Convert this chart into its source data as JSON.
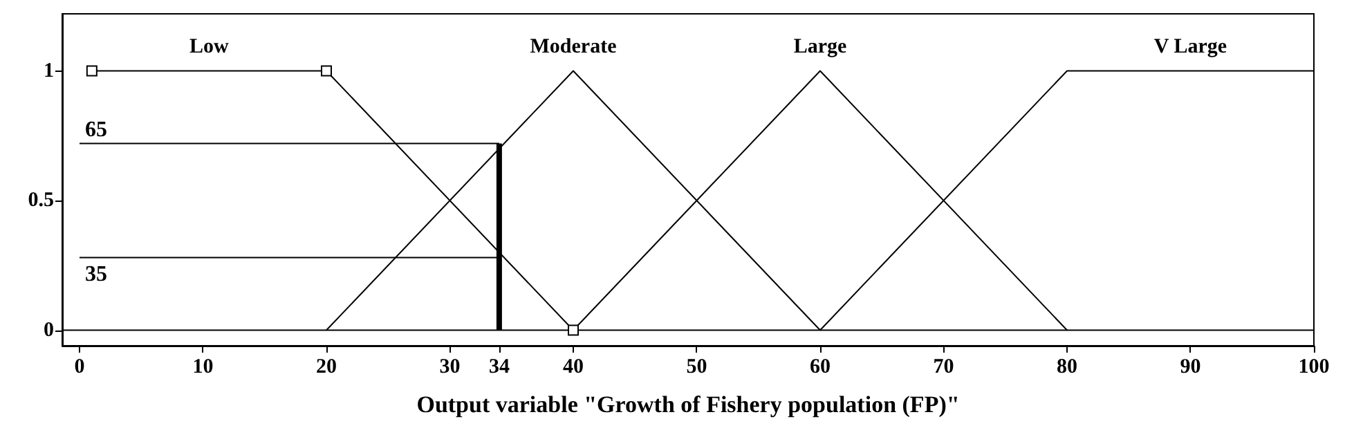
{
  "chart_data": {
    "type": "line",
    "xlabel": "Output variable \"Growth of Fishery population (FP)\"",
    "xlim": [
      -1.4,
      100
    ],
    "ylim": [
      -0.06,
      1.22
    ],
    "xticks": [
      0,
      10,
      20,
      30,
      34,
      40,
      50,
      60,
      70,
      80,
      90,
      100
    ],
    "yticks": [
      0,
      0.5,
      1
    ],
    "grid": false,
    "legend": false,
    "line_style": "solid",
    "ref_lines": [
      {
        "axis": "y",
        "value": 0,
        "color": "#000000"
      }
    ],
    "series": [
      {
        "name": "Low",
        "color": "#000000",
        "x": [
          1,
          20,
          40
        ],
        "values": [
          1,
          1,
          0
        ],
        "marker": "square"
      },
      {
        "name": "Moderate",
        "color": "#000000",
        "x": [
          20,
          40,
          60
        ],
        "values": [
          0,
          1,
          0
        ],
        "marker": "none"
      },
      {
        "name": "Large",
        "color": "#000000",
        "x": [
          40,
          60,
          80
        ],
        "values": [
          0,
          1,
          0
        ],
        "marker": "none"
      },
      {
        "name": "V Large",
        "color": "#000000",
        "x": [
          60,
          80,
          100
        ],
        "values": [
          0,
          1,
          1
        ],
        "marker": "none"
      },
      {
        "name": "65",
        "color": "#000000",
        "x": [
          0,
          34
        ],
        "values": [
          0.72,
          0.72
        ],
        "marker": "none"
      },
      {
        "name": "35",
        "color": "#000000",
        "x": [
          0,
          34
        ],
        "values": [
          0.28,
          0.28
        ],
        "marker": "none"
      },
      {
        "color": "#000000",
        "x": [
          34,
          34
        ],
        "values": [
          0,
          0.72
        ],
        "marker": "none"
      }
    ]
  }
}
